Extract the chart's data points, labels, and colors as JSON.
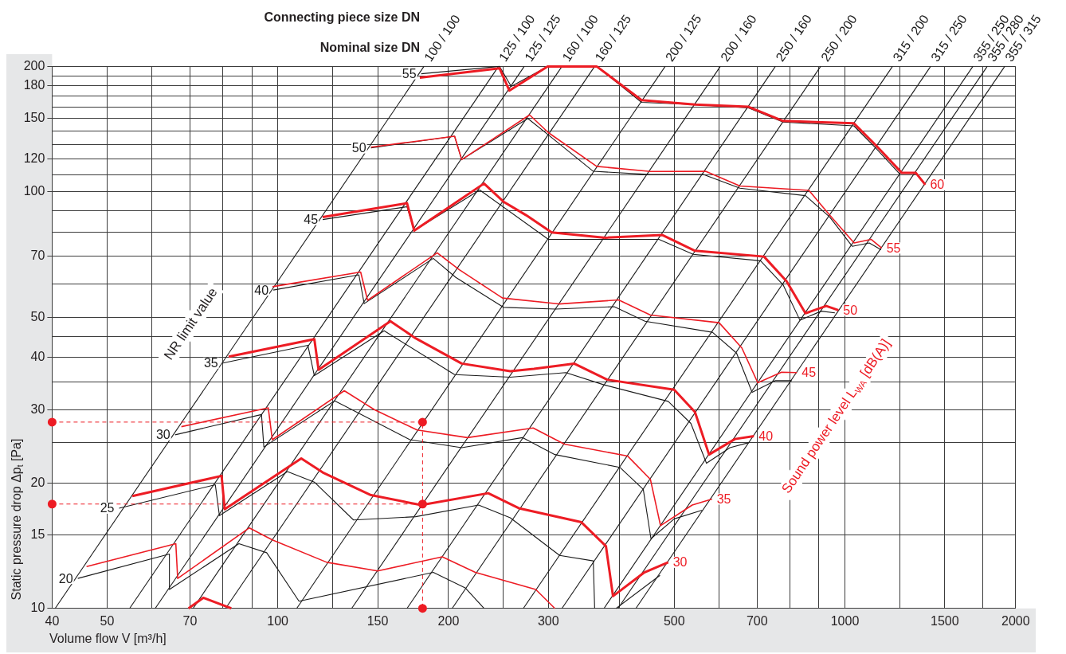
{
  "chart_data": {
    "type": "line",
    "xlabel": "Volume flow V [m³/h]",
    "ylabel": "Static pressure drop Δp$_{t}$ [Pa]",
    "annotations": [
      "Connecting piece size DN",
      "Nominal size DN",
      "NR limit value",
      "Sound power level L$_{WA}$ [dB(A)]"
    ],
    "log": "xy",
    "xlim": [
      40,
      2000
    ],
    "ylim": [
      10,
      200
    ],
    "xticks": [
      40,
      50,
      {
        "value": 60,
        "label": null
      },
      70,
      {
        "value": 80,
        "label": null
      },
      {
        "value": 90,
        "label": null
      },
      100,
      {
        "value": 125,
        "label": null
      },
      150,
      200,
      {
        "value": 250,
        "label": null
      },
      300,
      {
        "value": 400,
        "label": null
      },
      500,
      {
        "value": 600,
        "label": null
      },
      700,
      {
        "value": 800,
        "label": null
      },
      {
        "value": 900,
        "label": null
      },
      1000,
      {
        "value": 1250,
        "label": null
      },
      1500,
      {
        "value": 1750,
        "label": null
      },
      2000
    ],
    "yticks": [
      10,
      15,
      20,
      {
        "value": 25,
        "label": null
      },
      30,
      {
        "value": 35,
        "label": null
      },
      40,
      {
        "value": 45,
        "label": null
      },
      50,
      {
        "value": 60,
        "label": null
      },
      70,
      {
        "value": 80,
        "label": null
      },
      {
        "value": 90,
        "label": null
      },
      100,
      {
        "value": 110,
        "label": null
      },
      120,
      {
        "value": 130,
        "label": null
      },
      {
        "value": 140,
        "label": null
      },
      150,
      {
        "value": 160,
        "label": null
      },
      {
        "value": 170,
        "label": null
      },
      180,
      {
        "value": 190,
        "label": null
      },
      200
    ],
    "grid": true,
    "legend": false,
    "marker": "none",
    "line_style": "solid",
    "series": [
      {
        "name": "100 / 100",
        "color": "#1a1a1a",
        "x": [
          40.5,
          181
        ],
        "values": [
          10,
          200
        ]
      },
      {
        "name": "125 / 100",
        "color": "#1a1a1a",
        "x": [
          54.8,
          245
        ],
        "values": [
          10,
          200
        ]
      },
      {
        "name": "125 / 125",
        "color": "#1a1a1a",
        "x": [
          60.8,
          272
        ],
        "values": [
          10,
          200
        ]
      },
      {
        "name": "160 / 100",
        "color": "#1a1a1a",
        "x": [
          70.9,
          317
        ],
        "values": [
          10,
          200
        ]
      },
      {
        "name": "160 / 125",
        "color": "#1a1a1a",
        "x": [
          80.9,
          362
        ],
        "values": [
          10,
          200
        ]
      },
      {
        "name": "200 / 125",
        "color": "#1a1a1a",
        "x": [
          108,
          482
        ],
        "values": [
          10,
          200
        ]
      },
      {
        "name": "200 / 160",
        "color": "#1a1a1a",
        "x": [
          135,
          603
        ],
        "values": [
          10,
          200
        ]
      },
      {
        "name": "250 / 160",
        "color": "#1a1a1a",
        "x": [
          169,
          754
        ],
        "values": [
          10,
          200
        ]
      },
      {
        "name": "250 / 200",
        "color": "#1a1a1a",
        "x": [
          203,
          906
        ],
        "values": [
          10,
          200
        ]
      },
      {
        "name": "315 / 200",
        "color": "#1a1a1a",
        "x": [
          271,
          1213
        ],
        "values": [
          10,
          200
        ]
      },
      {
        "name": "315 / 250",
        "color": "#1a1a1a",
        "x": [
          317,
          1416
        ],
        "values": [
          10,
          200
        ]
      },
      {
        "name": "355 / 250",
        "color": "#1a1a1a",
        "x": [
          376,
          1681
        ],
        "values": [
          10,
          200
        ]
      },
      {
        "name": "355 / 280",
        "color": "#1a1a1a",
        "x": [
          398,
          1782
        ],
        "values": [
          10,
          200
        ]
      },
      {
        "name": "355 / 315",
        "color": "#1a1a1a",
        "x": [
          428,
          1913
        ],
        "values": [
          10,
          200
        ]
      },
      {
        "name": "55",
        "color": "#1a1a1a",
        "x": [
          1252,
          1136,
          1037,
          778,
          676,
          544,
          438,
          365,
          299,
          258,
          246,
          179
        ],
        "values": [
          110,
          127,
          144,
          147,
          159,
          162,
          164,
          200,
          200,
          179,
          200,
          192
        ]
      },
      {
        "name": "50",
        "color": "#1a1a1a",
        "x": [
          1158,
          1104,
          1030,
          940,
          852,
          653,
          564,
          454,
          360,
          300,
          276,
          211,
          205,
          146
        ],
        "values": [
          72.6,
          75.4,
          74,
          87,
          97.9,
          102,
          110,
          110,
          112,
          137,
          150,
          119.5,
          136,
          127.5
        ]
      },
      {
        "name": "45",
        "color": "#1a1a1a",
        "x": [
          960,
          908,
          833,
          778,
          710,
          540,
          470,
          300,
          227,
          174,
          169,
          120
        ],
        "values": [
          51.2,
          51.7,
          49.2,
          59.8,
          68.3,
          70.8,
          76.9,
          76.9,
          101,
          80.7,
          92.1,
          85.8
        ]
      },
      {
        "name": "40",
        "color": "#1a1a1a",
        "x": [
          806,
          753,
          686,
          644,
          584,
          444,
          392,
          309,
          250,
          206,
          188,
          142,
          139,
          98.2
        ],
        "values": [
          35.2,
          35.2,
          33,
          41,
          46,
          48.9,
          53,
          52.3,
          52.8,
          62.3,
          69.2,
          53.9,
          63.2,
          58.1
        ]
      },
      {
        "name": "35",
        "color": "#1a1a1a",
        "x": [
          677,
          627,
          570,
          535,
          488,
          376,
          322,
          257,
          205,
          154,
          116,
          113,
          80
        ],
        "values": [
          25,
          24.3,
          22.3,
          27.8,
          31.4,
          34.4,
          36.8,
          35.9,
          36.4,
          46.4,
          36.2,
          42.8,
          38.8
        ]
      },
      {
        "name": "30",
        "color": "#1a1a1a",
        "x": [
          560,
          500,
          455,
          441,
          401,
          308,
          270,
          211,
          171,
          126,
          94.5,
          93.6,
          65.9
        ],
        "values": [
          17.2,
          16.4,
          14.7,
          19.3,
          21.8,
          23.4,
          25.7,
          24.3,
          25.4,
          31.5,
          24.4,
          29.2,
          26.1
        ]
      },
      {
        "name": "25",
        "color": "#1a1a1a",
        "x": [
          472,
          395,
          380,
          362,
          360,
          314,
          257,
          226,
          175,
          136,
          116,
          104,
          78.9,
          77.6,
          52.5
        ],
        "values": [
          12,
          10,
          null,
          10,
          13,
          13.4,
          16.5,
          17.7,
          16.6,
          16.3,
          20.1,
          21.3,
          16.7,
          19.8,
          17.4
        ]
      },
      {
        "name": "20",
        "color": "#1a1a1a",
        "x": [
          231,
          214,
          188,
          109,
          95.6,
          85.4,
          64.4,
          64.4,
          44.4
        ],
        "values": [
          10,
          11.2,
          12.2,
          10.4,
          13.6,
          14.3,
          11.1,
          13.5,
          11.8
        ]
      },
      {
        "color": "#ed1c24",
        "x": [
          69.6,
          73.9,
          82.8
        ],
        "values": [
          10,
          10.6,
          10
        ]
      },
      {
        "color": "#ed1c24",
        "x": [
          46,
          66.1,
          66.6,
          89.1,
          97.8,
          122,
          150,
          195,
          223,
          285,
          308
        ],
        "values": [
          12.6,
          14.3,
          11.8,
          15.6,
          14.6,
          12.9,
          12.3,
          13.3,
          12.2,
          11.1,
          10
        ]
      },
      {
        "name": "30",
        "color": "#ed1c24",
        "x": [
          55.4,
          79.6,
          80.6,
          110,
          120,
          146,
          179,
          235,
          266,
          343,
          379,
          390,
          443,
          488
        ],
        "values": [
          18.6,
          20.8,
          17.3,
          22.9,
          21.2,
          18.7,
          17.7,
          18.9,
          17.4,
          16.1,
          14.1,
          10.7,
          12.2,
          12.9
        ]
      },
      {
        "name": "35",
        "color": "#ed1c24",
        "x": [
          67.6,
          96.2,
          97.8,
          131,
          148,
          176,
          216,
          282,
          320,
          414,
          454,
          473,
          538,
          583
        ],
        "values": [
          27.3,
          30.3,
          25.4,
          33.3,
          30,
          26.8,
          25.7,
          27.1,
          24.8,
          23.2,
          20.4,
          15.8,
          17.7,
          18.3
        ]
      },
      {
        "name": "40",
        "color": "#ed1c24",
        "x": [
          81.9,
          116,
          118,
          158,
          175,
          211,
          257,
          283,
          333,
          381,
          500,
          544,
          576,
          640,
          691
        ],
        "values": [
          40.2,
          44.3,
          37.4,
          48.9,
          44.5,
          38.7,
          37.1,
          37.6,
          38.7,
          35.4,
          33.5,
          29.6,
          23.4,
          25.5,
          25.9
        ]
      },
      {
        "name": "45",
        "color": "#ed1c24",
        "x": [
          97.9,
          140,
          144,
          191,
          209,
          249,
          313,
          399,
          454,
          600,
          658,
          702,
          773,
          823
        ],
        "values": [
          59.2,
          64.2,
          54.9,
          71.4,
          65,
          55.6,
          53.8,
          55,
          50.6,
          48.5,
          42.2,
          34.8,
          36.9,
          36.8
        ]
      },
      {
        "name": "50",
        "color": "#ed1c24",
        "x": [
          120,
          169,
          174,
          231,
          250,
          274,
          304,
          378,
          476,
          544,
          720,
          789,
          852,
          927,
          974
        ],
        "values": [
          87,
          93.9,
          80.7,
          104.7,
          94.7,
          87.9,
          79.9,
          77.6,
          78.8,
          72.2,
          69.9,
          61,
          51.1,
          53.2,
          52
        ]
      },
      {
        "name": "55",
        "color": "#ed1c24",
        "x": [
          146,
          205,
          211,
          278,
          300,
          365,
          454,
          568,
          653,
          864,
          940,
          1038,
          1112,
          1161
        ],
        "values": [
          128,
          136,
          119.5,
          153,
          138.7,
          115.1,
          111.9,
          112,
          103.3,
          100.8,
          87.9,
          75.4,
          76.9,
          73.3
        ]
      },
      {
        "name": "60",
        "color": "#ed1c24",
        "x": [
          178,
          246,
          256,
          299,
          365,
          438,
          544,
          676,
          778,
          1037,
          1136,
          1260,
          1334,
          1386
        ],
        "values": [
          188,
          198,
          175,
          200,
          200,
          166,
          162,
          160,
          148,
          146,
          129,
          111,
          111,
          104
        ]
      },
      {
        "color": "#ed1c24",
        "line_style": "dashed",
        "marker": "circle",
        "x": [
          40,
          180,
          180
        ],
        "values": [
          28,
          28,
          10
        ]
      },
      {
        "color": "#ed1c24",
        "line_style": "dashed",
        "marker": "circle",
        "x": [
          40,
          180
        ],
        "values": [
          17.8,
          17.8
        ]
      }
    ]
  }
}
